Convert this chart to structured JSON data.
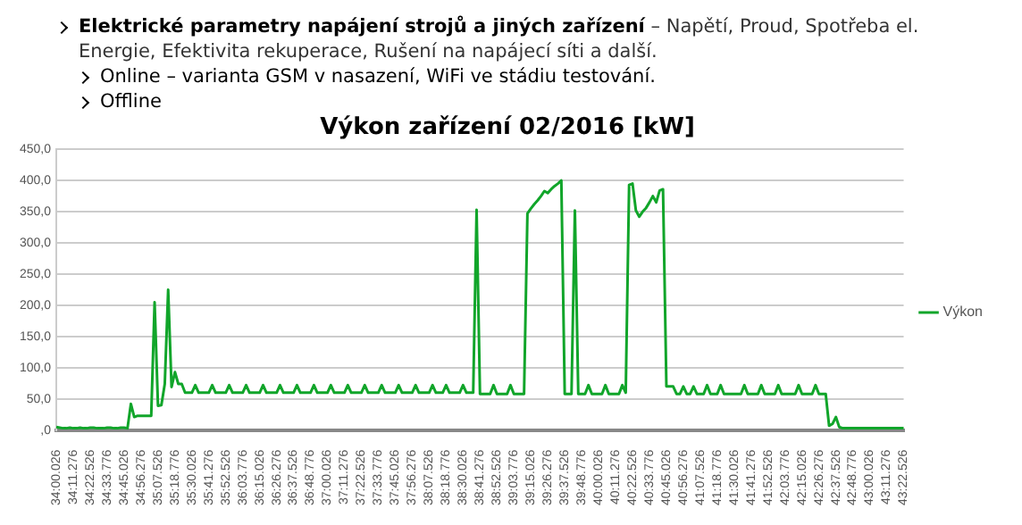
{
  "chart_data": {
    "type": "line",
    "title": "Výkon zařízení 02/2016 [kW]",
    "annotations": [
      "Elektrické parametry napájení strojů a jiných zařízení",
      "– Napětí, Proud, Spotřeba el. Energie, Efektivita rekuperace, Rušení na napájecí síti a další.",
      "Online – varianta GSM v nasazení, WiFi ve stádiu testování.",
      "Offline"
    ],
    "categories": [
      "34:00.026",
      null,
      null,
      null,
      null,
      "34:11.276",
      null,
      null,
      null,
      null,
      "34:22.526",
      null,
      null,
      null,
      null,
      "34:33.776",
      null,
      null,
      null,
      null,
      "34:45.026",
      null,
      null,
      null,
      null,
      "34:56.276",
      null,
      null,
      null,
      null,
      "35:07.526",
      null,
      null,
      null,
      null,
      "35:18.776",
      null,
      null,
      null,
      null,
      "35:30.026",
      null,
      null,
      null,
      null,
      "35:41.276",
      null,
      null,
      null,
      null,
      "35:52.526",
      null,
      null,
      null,
      null,
      "36:03.776",
      null,
      null,
      null,
      null,
      "36:15.026",
      null,
      null,
      null,
      null,
      "36:26.276",
      null,
      null,
      null,
      null,
      "36:37.526",
      null,
      null,
      null,
      null,
      "36:48.776",
      null,
      null,
      null,
      null,
      "37:00.026",
      null,
      null,
      null,
      null,
      "37:11.276",
      null,
      null,
      null,
      null,
      "37:22.526",
      null,
      null,
      null,
      null,
      "37:33.776",
      null,
      null,
      null,
      null,
      "37:45.026",
      null,
      null,
      null,
      null,
      "37:56.276",
      null,
      null,
      null,
      null,
      "38:07.526",
      null,
      null,
      null,
      null,
      "38:18.776",
      null,
      null,
      null,
      null,
      "38:30.026",
      null,
      null,
      null,
      null,
      "38:41.276",
      null,
      null,
      null,
      null,
      "38:52.526",
      null,
      null,
      null,
      null,
      "39:03.776",
      null,
      null,
      null,
      null,
      "39:15.026",
      null,
      null,
      null,
      null,
      "39:26.276",
      null,
      null,
      null,
      null,
      "39:37.526",
      null,
      null,
      null,
      null,
      "39:48.776",
      null,
      null,
      null,
      null,
      "40:00.026",
      null,
      null,
      null,
      null,
      "40:11.276",
      null,
      null,
      null,
      null,
      "40:22.526",
      null,
      null,
      null,
      null,
      "40:33.776",
      null,
      null,
      null,
      null,
      "40:45.026",
      null,
      null,
      null,
      null,
      "40:56.276",
      null,
      null,
      null,
      null,
      "41:07.526",
      null,
      null,
      null,
      null,
      "41:18.776",
      null,
      null,
      null,
      null,
      "41:30.026",
      null,
      null,
      null,
      null,
      "41:41.276",
      null,
      null,
      null,
      null,
      "41:52.526",
      null,
      null,
      null,
      null,
      "42:03.776",
      null,
      null,
      null,
      null,
      "42:15.026",
      null,
      null,
      null,
      null,
      "42:26.276",
      null,
      null,
      null,
      null,
      "42:37.526",
      null,
      null,
      null,
      null,
      "42:48.776",
      null,
      null,
      null,
      null,
      "43:00.026",
      null,
      null,
      null,
      null,
      "43:11.276",
      null,
      null,
      null,
      null,
      "43:22.526"
    ],
    "ylim": [
      0,
      450
    ],
    "yticks": [
      {
        "value": 0,
        "label": ",0"
      },
      {
        "value": 50,
        "label": "50,0"
      },
      {
        "value": 100,
        "label": "100,0"
      },
      {
        "value": 150,
        "label": "150,0"
      },
      {
        "value": 200,
        "label": "200,0"
      },
      {
        "value": 250,
        "label": "250,0"
      },
      {
        "value": 300,
        "label": "300,0"
      },
      {
        "value": 350,
        "label": "350,0"
      },
      {
        "value": 400,
        "label": "400,0"
      },
      {
        "value": 450,
        "label": "450,0"
      }
    ],
    "grid": "y",
    "legend": "right",
    "marker": "none",
    "line_style": "solid",
    "series": [
      {
        "name": "Výkon",
        "color": "#11a52a",
        "values": [
          5,
          4,
          3,
          3,
          4,
          3,
          3,
          4,
          3,
          3,
          4,
          4,
          3,
          3,
          3,
          4,
          4,
          3,
          3,
          4,
          4,
          3,
          42,
          21,
          23,
          23,
          23,
          23,
          23,
          205,
          39,
          40,
          74,
          225,
          69,
          93,
          74,
          74,
          60,
          60,
          60,
          72,
          60,
          60,
          60,
          60,
          72,
          60,
          60,
          60,
          60,
          72,
          60,
          60,
          60,
          60,
          72,
          60,
          60,
          60,
          60,
          72,
          60,
          60,
          60,
          60,
          72,
          60,
          60,
          60,
          60,
          72,
          60,
          60,
          60,
          60,
          72,
          60,
          60,
          60,
          60,
          72,
          60,
          60,
          60,
          60,
          72,
          60,
          60,
          60,
          60,
          72,
          60,
          60,
          60,
          60,
          72,
          60,
          60,
          60,
          60,
          72,
          60,
          60,
          60,
          60,
          72,
          60,
          60,
          60,
          60,
          72,
          60,
          60,
          60,
          72,
          60,
          60,
          60,
          60,
          72,
          60,
          60,
          60,
          353,
          58,
          58,
          58,
          58,
          72,
          58,
          58,
          58,
          58,
          72,
          58,
          58,
          58,
          58,
          347,
          355,
          362,
          368,
          375,
          383,
          380,
          386,
          391,
          395,
          400,
          58,
          58,
          58,
          352,
          58,
          58,
          58,
          72,
          58,
          58,
          58,
          58,
          72,
          58,
          58,
          58,
          58,
          72,
          60,
          393,
          395,
          352,
          342,
          350,
          356,
          365,
          375,
          365,
          384,
          386,
          70,
          70,
          70,
          58,
          58,
          70,
          58,
          58,
          70,
          58,
          58,
          58,
          72,
          58,
          58,
          58,
          72,
          58,
          58,
          58,
          58,
          58,
          58,
          72,
          58,
          58,
          58,
          58,
          72,
          58,
          58,
          58,
          58,
          72,
          58,
          58,
          58,
          58,
          58,
          72,
          58,
          58,
          58,
          58,
          72,
          58,
          58,
          58,
          7,
          10,
          21,
          5,
          3,
          3,
          3,
          3,
          3,
          3,
          3,
          3,
          3,
          3,
          3,
          3,
          3,
          3,
          3,
          3,
          3,
          3,
          3
        ]
      }
    ]
  }
}
